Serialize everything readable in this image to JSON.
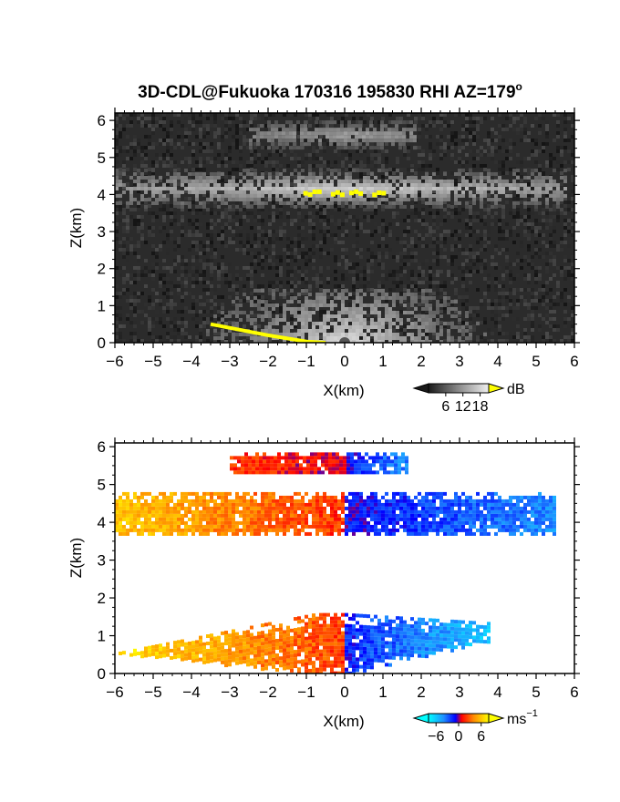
{
  "title": "3D-CDL@Fukuoka 170316 195830 RHI AZ=179",
  "title_degree": "o",
  "colors": {
    "reflectivity_background": "#2b2b2b",
    "reflectivity_echo_min": "#5a5a5a",
    "reflectivity_echo_max": "#f2f2f2",
    "reflectivity_clip": "#ffff00",
    "velocity_colormap": [
      "#00ffff",
      "#1e90ff",
      "#0000ff",
      "#ff0000",
      "#ff8c00",
      "#ffff00"
    ]
  },
  "chart_data": [
    {
      "id": "reflectivity",
      "type": "heatmap",
      "variable": "reflectivity",
      "xlabel": "X(km)",
      "ylabel": "Z(km)",
      "xlim": [
        -6,
        6
      ],
      "ylim": [
        0,
        6.2
      ],
      "xticks": [
        "−6",
        "−5",
        "−4",
        "−3",
        "−2",
        "−1",
        "0",
        "1",
        "2",
        "3",
        "4",
        "5",
        "6"
      ],
      "yticks": [
        "0",
        "1",
        "2",
        "3",
        "4",
        "5",
        "6"
      ],
      "colorbar": {
        "unit": "dB",
        "range": [
          0,
          21
        ],
        "ticks": [
          6,
          12,
          18
        ],
        "tick_labels": [
          "6",
          "12",
          "18"
        ]
      },
      "layers": [
        {
          "name": "lower",
          "z_bottom": 0.0,
          "z_top": 1.55,
          "x_from": -6.0,
          "x_to": 4.0,
          "peak_db": 16
        },
        {
          "name": "middle",
          "z_bottom": 3.7,
          "z_top": 4.7,
          "x_from": -6.0,
          "x_to": 5.8,
          "peak_db": 15
        },
        {
          "name": "upper",
          "z_bottom": 5.3,
          "z_top": 6.0,
          "x_from": -2.5,
          "x_to": 1.8,
          "peak_db": 10
        }
      ],
      "clip_region": [
        {
          "x": -3.5,
          "z": 0.5
        },
        {
          "x": -2.0,
          "z": 0.2
        },
        {
          "x": -1.0,
          "z": 0.03
        },
        {
          "x": -0.5,
          "z": 0.0
        }
      ],
      "clip_patch": {
        "x_from": -1.2,
        "x_to": 1.0,
        "z": 4.05
      }
    },
    {
      "id": "velocity",
      "type": "heatmap",
      "variable": "doppler_velocity",
      "xlabel": "X(km)",
      "ylabel": "Z(km)",
      "xlim": [
        -6,
        6
      ],
      "ylim": [
        0,
        6.1
      ],
      "xticks": [
        "−6",
        "−5",
        "−4",
        "−3",
        "−2",
        "−1",
        "0",
        "1",
        "2",
        "3",
        "4",
        "5",
        "6"
      ],
      "yticks": [
        "0",
        "1",
        "2",
        "3",
        "4",
        "5",
        "6"
      ],
      "colorbar": {
        "unit": "ms",
        "unit_superscript": "−1",
        "range": [
          -8,
          8
        ],
        "ticks": [
          -6,
          0,
          6
        ],
        "tick_labels": [
          "−6",
          "0",
          "6"
        ]
      },
      "layers": [
        {
          "name": "lower",
          "z_bottom": 0.0,
          "z_top": 1.6,
          "x_from": -6.0,
          "x_to": 3.8,
          "v_left": 7,
          "v_right": -6
        },
        {
          "name": "middle",
          "z_bottom": 3.7,
          "z_top": 4.8,
          "x_from": -6.0,
          "x_to": 5.5,
          "v_left": 6,
          "v_right": -4
        },
        {
          "name": "upper",
          "z_bottom": 5.3,
          "z_top": 5.85,
          "x_from": -3.0,
          "x_to": 1.6,
          "v_left": 2,
          "v_right": -4
        }
      ]
    }
  ]
}
